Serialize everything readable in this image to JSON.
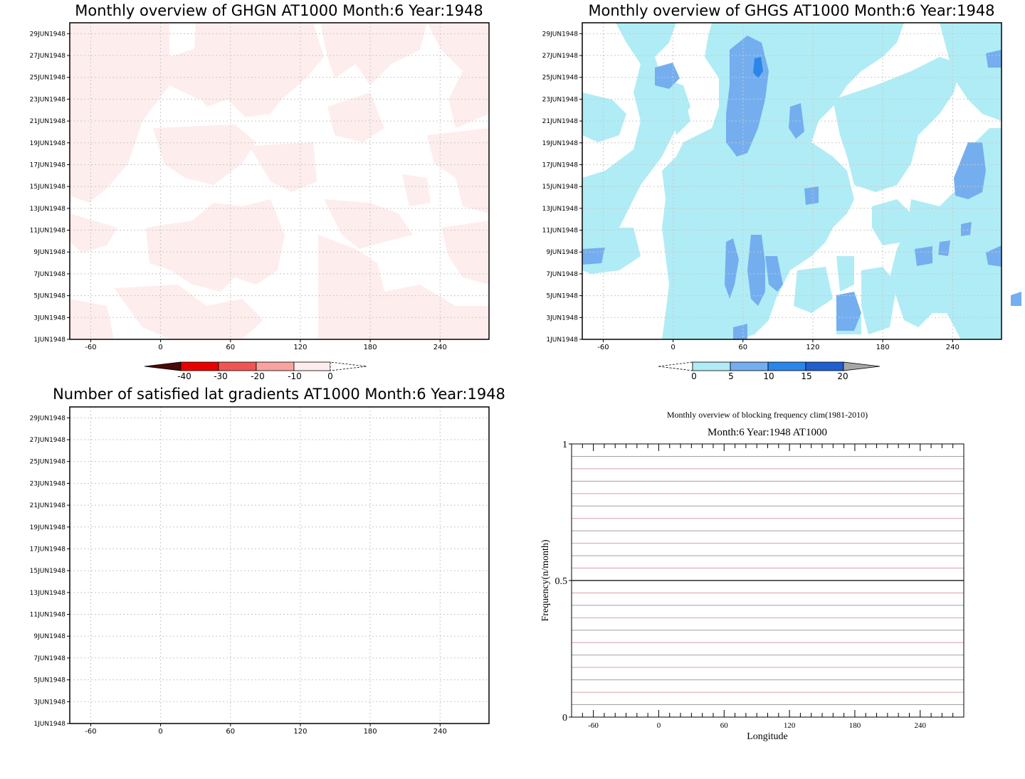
{
  "colors": {
    "ghgn_fill": "#fdeeed",
    "ghgs_l1": "#b0ecf5",
    "ghgs_l2": "#74aeef",
    "ghgs_l3": "#2b86ea",
    "ghgs_l4": "#1f5fd0",
    "red_l1": "#fdeeed",
    "red_l2": "#f9a3a1",
    "red_l3": "#f05555",
    "red_l4": "#e80000",
    "red_l5": "#4a0806",
    "grey_tip": "#a7a7a7",
    "ref_line_red": "#d9a0a8",
    "ref_line_grey": "#a0a0a0"
  },
  "chart_data": [
    {
      "type": "heatmap",
      "title": "Monthly overview of GHGN AT1000 Month:6 Year:1948",
      "x_ticks": [
        "-60",
        "0",
        "60",
        "120",
        "180",
        "240"
      ],
      "xlim": [
        -78,
        282
      ],
      "y_ticks": [
        "1JUN1948",
        "3JUN1948",
        "5JUN1948",
        "7JUN1948",
        "9JUN1948",
        "11JUN1948",
        "13JUN1948",
        "15JUN1948",
        "17JUN1948",
        "19JUN1948",
        "21JUN1948",
        "23JUN1948",
        "25JUN1948",
        "27JUN1948",
        "29JUN1948"
      ],
      "ylim": [
        "1JUN1948",
        "30JUN1948"
      ],
      "grid": true,
      "colorbar": {
        "labels": [
          "-40",
          "-30",
          "-20",
          "-10",
          "0"
        ],
        "levels": [
          -40,
          -30,
          -20,
          -10,
          0
        ],
        "colors": [
          "#4a0806",
          "#e80000",
          "#f05555",
          "#f9a3a1",
          "#fdeeed",
          "#ffffff"
        ]
      },
      "field_description_levels": "values between -10 and 0 over roughly half of the domain, remainder at or above 0"
    },
    {
      "type": "heatmap",
      "title": "Monthly overview of GHGS AT1000 Month:6 Year:1948",
      "x_ticks": [
        "-60",
        "0",
        "60",
        "120",
        "180",
        "240"
      ],
      "xlim": [
        -78,
        282
      ],
      "y_ticks": [
        "1JUN1948",
        "3JUN1948",
        "5JUN1948",
        "7JUN1948",
        "9JUN1948",
        "11JUN1948",
        "13JUN1948",
        "15JUN1948",
        "17JUN1948",
        "19JUN1948",
        "21JUN1948",
        "23JUN1948",
        "25JUN1948",
        "27JUN1948",
        "29JUN1948"
      ],
      "ylim": [
        "1JUN1948",
        "30JUN1948"
      ],
      "grid": true,
      "colorbar": {
        "labels": [
          "0",
          "5",
          "10",
          "15",
          "20"
        ],
        "levels": [
          0,
          5,
          10,
          15,
          20
        ],
        "colors": [
          "#ffffff",
          "#b0ecf5",
          "#74aeef",
          "#2b86ea",
          "#1f5fd0",
          "#a7a7a7"
        ]
      },
      "field_description_levels": "most of domain 0-5, patches 5-10, a small spot 10-15 near lon 70 on 26JUN"
    },
    {
      "type": "heatmap",
      "title": "Number of satisfied lat gradients AT1000 Month:6 Year:1948",
      "x_ticks": [
        "-60",
        "0",
        "60",
        "120",
        "180",
        "240"
      ],
      "xlim": [
        -78,
        282
      ],
      "y_ticks": [
        "1JUN1948",
        "3JUN1948",
        "5JUN1948",
        "7JUN1948",
        "9JUN1948",
        "11JUN1948",
        "13JUN1948",
        "15JUN1948",
        "17JUN1948",
        "19JUN1948",
        "21JUN1948",
        "23JUN1948",
        "25JUN1948",
        "27JUN1948",
        "29JUN1948"
      ],
      "ylim": [
        "1JUN1948",
        "30JUN1948"
      ],
      "grid": true,
      "values": []
    },
    {
      "type": "line",
      "title": "Monthly overview of blocking frequency clim(1981-2010)",
      "subtitle": "Month:6 Year:1948  AT1000",
      "xlabel": "Longitude",
      "ylabel": "Frequency(n/month)",
      "x_ticks": [
        "-60",
        "0",
        "60",
        "120",
        "180",
        "240"
      ],
      "xlim": [
        -80,
        280
      ],
      "y_ticks": [
        "0",
        "0.5",
        "1"
      ],
      "ylim": [
        0,
        1
      ],
      "series": [
        {
          "values": [
            0.5,
            0.5
          ]
        }
      ]
    }
  ]
}
